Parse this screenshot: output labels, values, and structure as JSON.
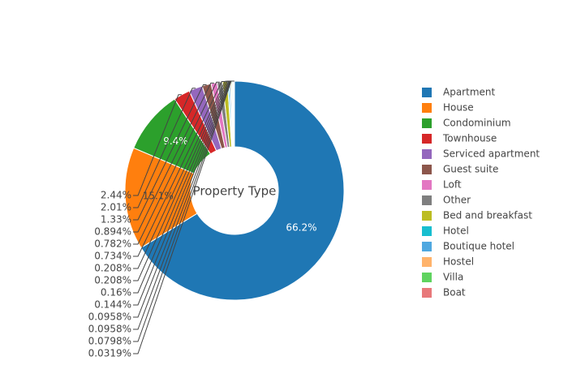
{
  "chart_data": {
    "type": "pie",
    "title": "Property Type",
    "categories": [
      "Apartment",
      "House",
      "Condominium",
      "Townhouse",
      "Serviced apartment",
      "Guest suite",
      "Loft",
      "Other",
      "Bed and breakfast",
      "Hotel",
      "Boutique hotel",
      "Hostel",
      "Villa",
      "Boat",
      null,
      null,
      null
    ],
    "values": [
      66.2,
      15.1,
      9.4,
      2.44,
      2.01,
      1.33,
      0.894,
      0.782,
      0.734,
      0.208,
      0.208,
      0.16,
      0.144,
      0.0958,
      0.0958,
      0.0798,
      0.0319
    ],
    "value_labels": [
      "66.2%",
      "15.1%",
      "9.4%",
      "2.44%",
      "2.01%",
      "1.33%",
      "0.894%",
      "0.782%",
      "0.734%",
      "0.208%",
      "0.208%",
      "0.16%",
      "0.144%",
      "0.0958%",
      "0.0958%",
      "0.0798%",
      "0.0319%"
    ],
    "colors": [
      "#1f77b4",
      "#ff7f0e",
      "#2ca02c",
      "#d62728",
      "#9467bd",
      "#8c564b",
      "#e377c2",
      "#7f7f7f",
      "#bcbd22",
      "#17becf",
      "#4fa8e0",
      "#ffb36b",
      "#5fd35f",
      "#e8787a",
      "#b28ed3",
      "#b08479",
      "#f1a8d6"
    ],
    "hole": 0.4,
    "direction": "clockwise",
    "legend": "right"
  }
}
